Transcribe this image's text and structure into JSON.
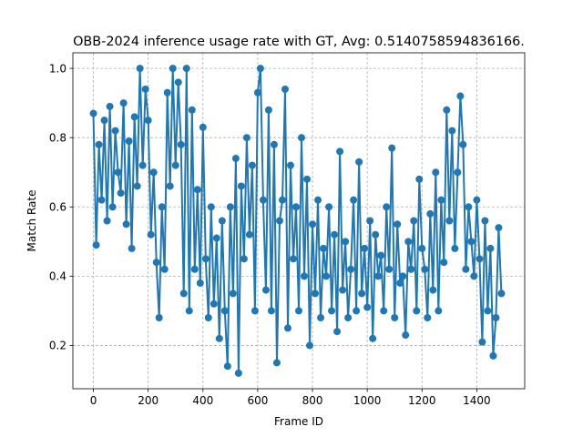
{
  "chart_data": {
    "type": "line",
    "title": "OBB-2024 inference usage rate with GT, Avg: 0.5140758594836166.",
    "xlabel": "Frame ID",
    "ylabel": "Match Rate",
    "xlim": [
      -75,
      1575
    ],
    "ylim": [
      0.075,
      1.045
    ],
    "xticks": [
      0,
      200,
      400,
      600,
      800,
      1000,
      1200,
      1400
    ],
    "yticks": [
      0.2,
      0.4,
      0.6,
      0.8,
      1.0
    ],
    "xtick_labels": [
      "0",
      "200",
      "400",
      "600",
      "800",
      "1000",
      "1200",
      "1400"
    ],
    "ytick_labels": [
      "0.2",
      "0.4",
      "0.6",
      "0.8",
      "1.0"
    ],
    "grid": true,
    "series_color": "#1f77b4",
    "marker": "circle",
    "series": [
      {
        "x": [
          0,
          10,
          20,
          30,
          40,
          50,
          60,
          70,
          80,
          90,
          100,
          110,
          120,
          130,
          140,
          150,
          160,
          170,
          180,
          190,
          200,
          210,
          220,
          230,
          240,
          250,
          260,
          270,
          280,
          290,
          300,
          310,
          320,
          330,
          340,
          350,
          360,
          370,
          380,
          390,
          400,
          410,
          420,
          430,
          440,
          450,
          460,
          470,
          480,
          490,
          500,
          510,
          520,
          530,
          540,
          550,
          560,
          570,
          580,
          590,
          600,
          610,
          620,
          630,
          640,
          650,
          660,
          670,
          680,
          690,
          700,
          710,
          720,
          730,
          740,
          750,
          760,
          770,
          780,
          790,
          800,
          810,
          820,
          830,
          840,
          850,
          860,
          870,
          880,
          890,
          900,
          910,
          920,
          930,
          940,
          950,
          960,
          970,
          980,
          990,
          1000,
          1010,
          1020,
          1030,
          1040,
          1050,
          1060,
          1070,
          1080,
          1090,
          1100,
          1110,
          1120,
          1130,
          1140,
          1150,
          1160,
          1170,
          1180,
          1190,
          1200,
          1210,
          1220,
          1230,
          1240,
          1250,
          1260,
          1270,
          1280,
          1290,
          1300,
          1310,
          1320,
          1330,
          1340,
          1350,
          1360,
          1370,
          1380,
          1390,
          1400,
          1410,
          1420,
          1430,
          1440,
          1450,
          1460,
          1470,
          1480,
          1490
        ],
        "values": [
          0.87,
          0.49,
          0.78,
          0.62,
          0.85,
          0.56,
          0.89,
          0.6,
          0.82,
          0.7,
          0.64,
          0.9,
          0.55,
          0.79,
          0.48,
          0.86,
          0.66,
          1.0,
          0.72,
          0.94,
          0.85,
          0.52,
          0.7,
          0.44,
          0.28,
          0.6,
          0.42,
          0.93,
          0.66,
          1.0,
          0.72,
          0.96,
          0.78,
          0.35,
          1.0,
          0.3,
          0.88,
          0.42,
          0.65,
          0.38,
          0.83,
          0.45,
          0.28,
          0.6,
          0.32,
          0.51,
          0.22,
          0.56,
          0.3,
          0.14,
          0.6,
          0.35,
          0.74,
          0.12,
          0.66,
          0.45,
          0.8,
          0.52,
          0.72,
          0.3,
          0.93,
          1.0,
          0.62,
          0.36,
          0.88,
          0.3,
          0.78,
          0.15,
          0.56,
          0.62,
          0.94,
          0.25,
          0.72,
          0.45,
          0.6,
          0.3,
          0.8,
          0.4,
          0.68,
          0.2,
          0.55,
          0.35,
          0.62,
          0.28,
          0.48,
          0.4,
          0.6,
          0.3,
          0.52,
          0.24,
          0.76,
          0.36,
          0.5,
          0.28,
          0.42,
          0.62,
          0.3,
          0.73,
          0.35,
          0.48,
          0.31,
          0.56,
          0.22,
          0.52,
          0.4,
          0.46,
          0.3,
          0.6,
          0.42,
          0.77,
          0.28,
          0.55,
          0.38,
          0.4,
          0.23,
          0.5,
          0.42,
          0.56,
          0.3,
          0.68,
          0.48,
          0.42,
          0.28,
          0.58,
          0.36,
          0.7,
          0.3,
          0.62,
          0.44,
          0.88,
          0.56,
          0.82,
          0.48,
          0.7,
          0.92,
          0.78,
          0.42,
          0.6,
          0.5,
          0.4,
          0.62,
          0.45,
          0.21,
          0.56,
          0.3,
          0.48,
          0.17,
          0.28,
          0.54,
          0.35
        ]
      }
    ]
  }
}
